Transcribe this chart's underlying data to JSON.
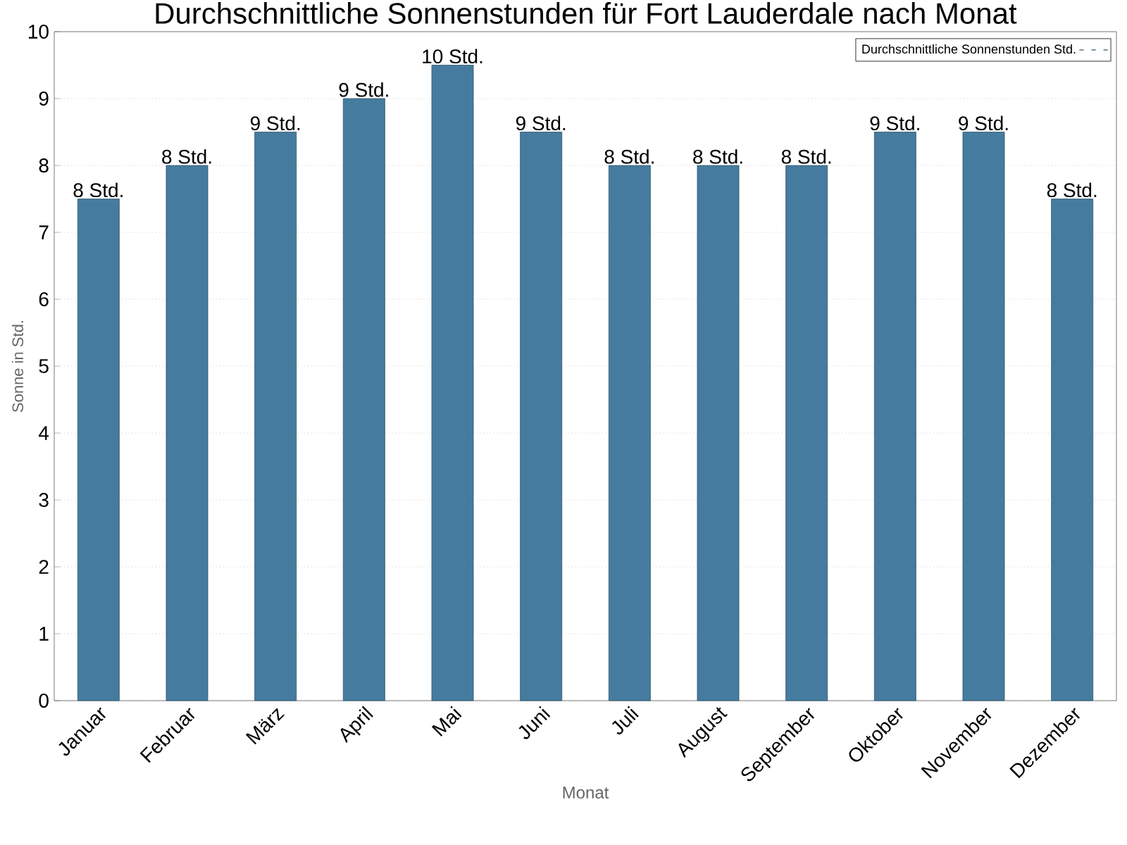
{
  "chart_data": {
    "type": "bar",
    "title": "Durchschnittliche Sonnenstunden für Fort Lauderdale nach Monat",
    "xlabel": "Monat",
    "ylabel": "Sonne in Std.",
    "categories": [
      "Januar",
      "Februar",
      "März",
      "April",
      "Mai",
      "Juni",
      "Juli",
      "August",
      "September",
      "Oktober",
      "November",
      "Dezember"
    ],
    "series": [
      {
        "name": "Durchschnittliche Sonnenstunden Std.",
        "color": "#457b9e",
        "values": [
          7.5,
          8,
          8.5,
          9,
          9.5,
          8.5,
          8,
          8,
          8,
          8.5,
          8.5,
          7.5
        ],
        "value_labels": [
          "8 Std.",
          "8 Std.",
          "9 Std.",
          "9 Std.",
          "10 Std.",
          "9 Std.",
          "8 Std.",
          "8 Std.",
          "8 Std.",
          "9 Std.",
          "9 Std.",
          "8 Std."
        ]
      }
    ],
    "ylim": [
      0,
      10
    ],
    "yticks": [
      0,
      1,
      2,
      3,
      4,
      5,
      6,
      7,
      8,
      9,
      10
    ],
    "grid": "y",
    "legend": "top right"
  }
}
